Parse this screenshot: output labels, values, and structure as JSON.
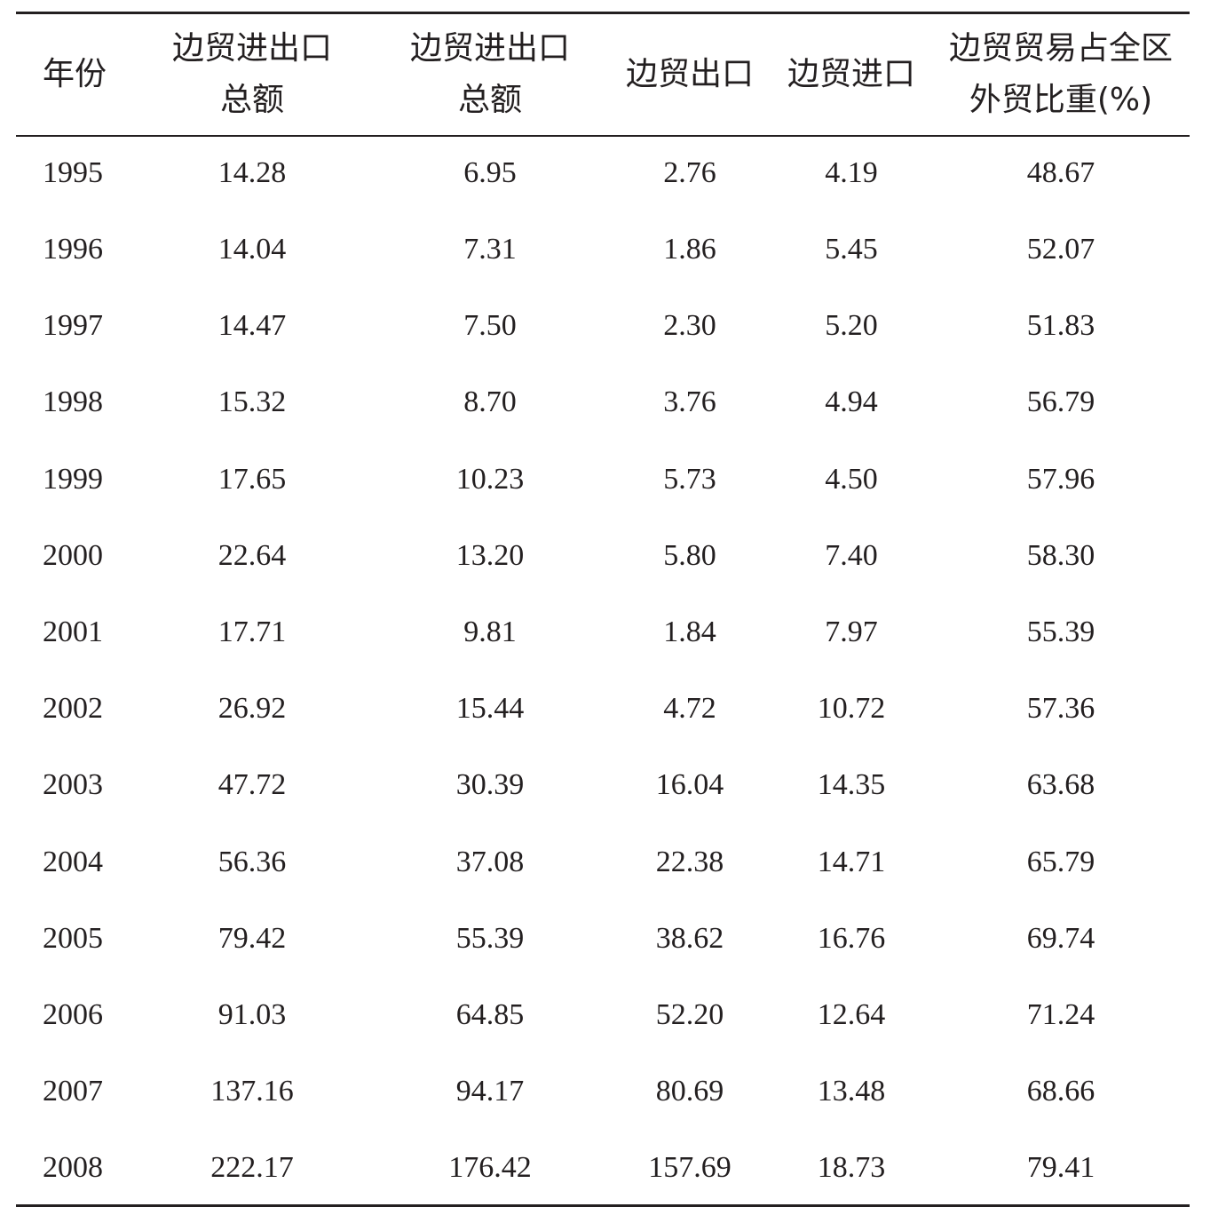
{
  "table": {
    "headers": [
      {
        "lines": [
          "年份"
        ]
      },
      {
        "lines": [
          "边贸进出口",
          "总额"
        ]
      },
      {
        "lines": [
          "边贸进出口",
          "总额"
        ]
      },
      {
        "lines": [
          "边贸出口"
        ]
      },
      {
        "lines": [
          "边贸进口"
        ]
      },
      {
        "lines": [
          "边贸贸易占全区",
          "外贸比重(%)"
        ]
      }
    ],
    "rows": [
      [
        "1995",
        "14.28",
        "6.95",
        "2.76",
        "4.19",
        "48.67"
      ],
      [
        "1996",
        "14.04",
        "7.31",
        "1.86",
        "5.45",
        "52.07"
      ],
      [
        "1997",
        "14.47",
        "7.50",
        "2.30",
        "5.20",
        "51.83"
      ],
      [
        "1998",
        "15.32",
        "8.70",
        "3.76",
        "4.94",
        "56.79"
      ],
      [
        "1999",
        "17.65",
        "10.23",
        "5.73",
        "4.50",
        "57.96"
      ],
      [
        "2000",
        "22.64",
        "13.20",
        "5.80",
        "7.40",
        "58.30"
      ],
      [
        "2001",
        "17.71",
        "9.81",
        "1.84",
        "7.97",
        "55.39"
      ],
      [
        "2002",
        "26.92",
        "15.44",
        "4.72",
        "10.72",
        "57.36"
      ],
      [
        "2003",
        "47.72",
        "30.39",
        "16.04",
        "14.35",
        "63.68"
      ],
      [
        "2004",
        "56.36",
        "37.08",
        "22.38",
        "14.71",
        "65.79"
      ],
      [
        "2005",
        "79.42",
        "55.39",
        "38.62",
        "16.76",
        "69.74"
      ],
      [
        "2006",
        "91.03",
        "64.85",
        "52.20",
        "12.64",
        "71.24"
      ],
      [
        "2007",
        "137.16",
        "94.17",
        "80.69",
        "13.48",
        "68.66"
      ],
      [
        "2008",
        "222.17",
        "176.42",
        "157.69",
        "18.73",
        "79.41"
      ]
    ]
  }
}
